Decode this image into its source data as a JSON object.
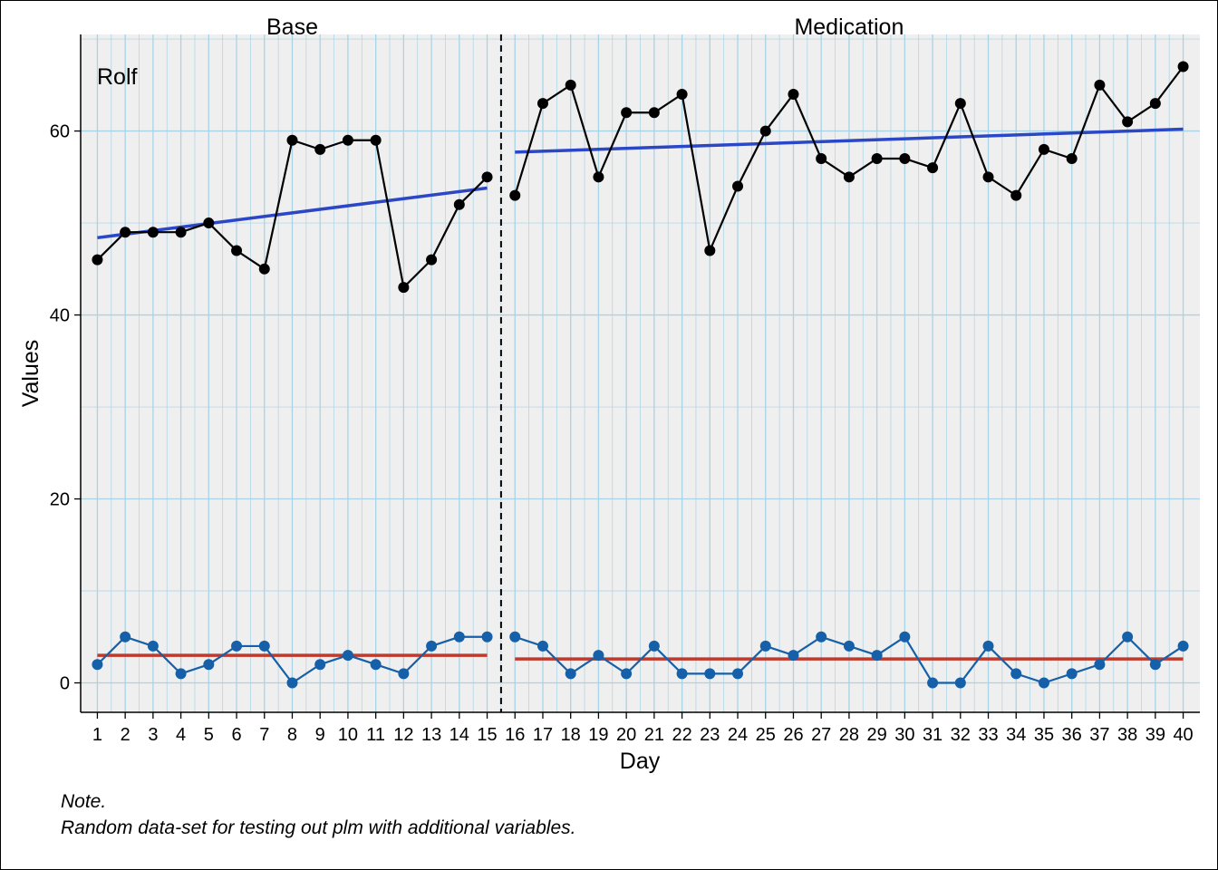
{
  "chart_data": {
    "type": "line",
    "title": "",
    "case_label": "Rolf",
    "xlabel": "Day",
    "ylabel": "Values",
    "xlim": [
      0.4,
      40.6
    ],
    "ylim": [
      -3.2,
      70.5
    ],
    "y_ticks": [
      0,
      20,
      40,
      60
    ],
    "y_tick_labels": [
      "0",
      "20",
      "40",
      "60"
    ],
    "x_ticks": [
      1,
      2,
      3,
      4,
      5,
      6,
      7,
      8,
      9,
      10,
      11,
      12,
      13,
      14,
      15,
      16,
      17,
      18,
      19,
      20,
      21,
      22,
      23,
      24,
      25,
      26,
      27,
      28,
      29,
      30,
      31,
      32,
      33,
      34,
      35,
      36,
      37,
      38,
      39,
      40
    ],
    "x_tick_labels": [
      "1",
      "2",
      "3",
      "4",
      "5",
      "6",
      "7",
      "8",
      "9",
      "10",
      "11",
      "12",
      "13",
      "14",
      "15",
      "16",
      "17",
      "18",
      "19",
      "20",
      "21",
      "22",
      "23",
      "24",
      "25",
      "26",
      "27",
      "28",
      "29",
      "30",
      "31",
      "32",
      "33",
      "34",
      "35",
      "36",
      "37",
      "38",
      "39",
      "40"
    ],
    "grid": true,
    "phases": [
      {
        "label": "Base",
        "start": 1,
        "end": 15
      },
      {
        "label": "Medication",
        "start": 16,
        "end": 40
      }
    ],
    "phase_change_at": 15.5,
    "x": [
      1,
      2,
      3,
      4,
      5,
      6,
      7,
      8,
      9,
      10,
      11,
      12,
      13,
      14,
      15,
      16,
      17,
      18,
      19,
      20,
      21,
      22,
      23,
      24,
      25,
      26,
      27,
      28,
      29,
      30,
      31,
      32,
      33,
      34,
      35,
      36,
      37,
      38,
      39,
      40
    ],
    "series": [
      {
        "color": "#000000",
        "values": [
          46,
          49,
          49,
          49,
          50,
          47,
          45,
          59,
          58,
          59,
          59,
          43,
          46,
          52,
          55,
          53,
          63,
          65,
          55,
          62,
          62,
          64,
          47,
          54,
          60,
          64,
          57,
          55,
          57,
          57,
          56,
          63,
          55,
          53,
          58,
          57,
          65,
          61,
          63,
          67
        ]
      },
      {
        "color": "#1560a8",
        "values": [
          2,
          5,
          4,
          1,
          2,
          4,
          4,
          0,
          2,
          3,
          2,
          1,
          4,
          5,
          5,
          5,
          4,
          1,
          3,
          1,
          4,
          1,
          1,
          1,
          4,
          3,
          5,
          4,
          3,
          5,
          0,
          0,
          4,
          1,
          0,
          1,
          2,
          5,
          2,
          4
        ]
      }
    ],
    "trend_lines": [
      {
        "color": "#2b47c6",
        "phase": "Base",
        "from": [
          1,
          48.4
        ],
        "to": [
          15,
          53.8
        ]
      },
      {
        "color": "#2b47c6",
        "phase": "Medication",
        "from": [
          16,
          57.7
        ],
        "to": [
          40,
          60.2
        ]
      },
      {
        "color": "#c0392b",
        "phase": "Base",
        "from": [
          1,
          3.0
        ],
        "to": [
          15,
          3.0
        ]
      },
      {
        "color": "#c0392b",
        "phase": "Medication",
        "from": [
          16,
          2.6
        ],
        "to": [
          40,
          2.6
        ]
      }
    ],
    "colors": {
      "panel_bg": "#efefef",
      "grid_line": "#a9d3e6",
      "primary_line": "#000000",
      "secondary_line": "#1560a8",
      "trend": "#2b47c6",
      "level": "#c0392b"
    }
  },
  "note": {
    "heading": "Note.",
    "text": "Random data-set for testing out plm with additional variables."
  }
}
